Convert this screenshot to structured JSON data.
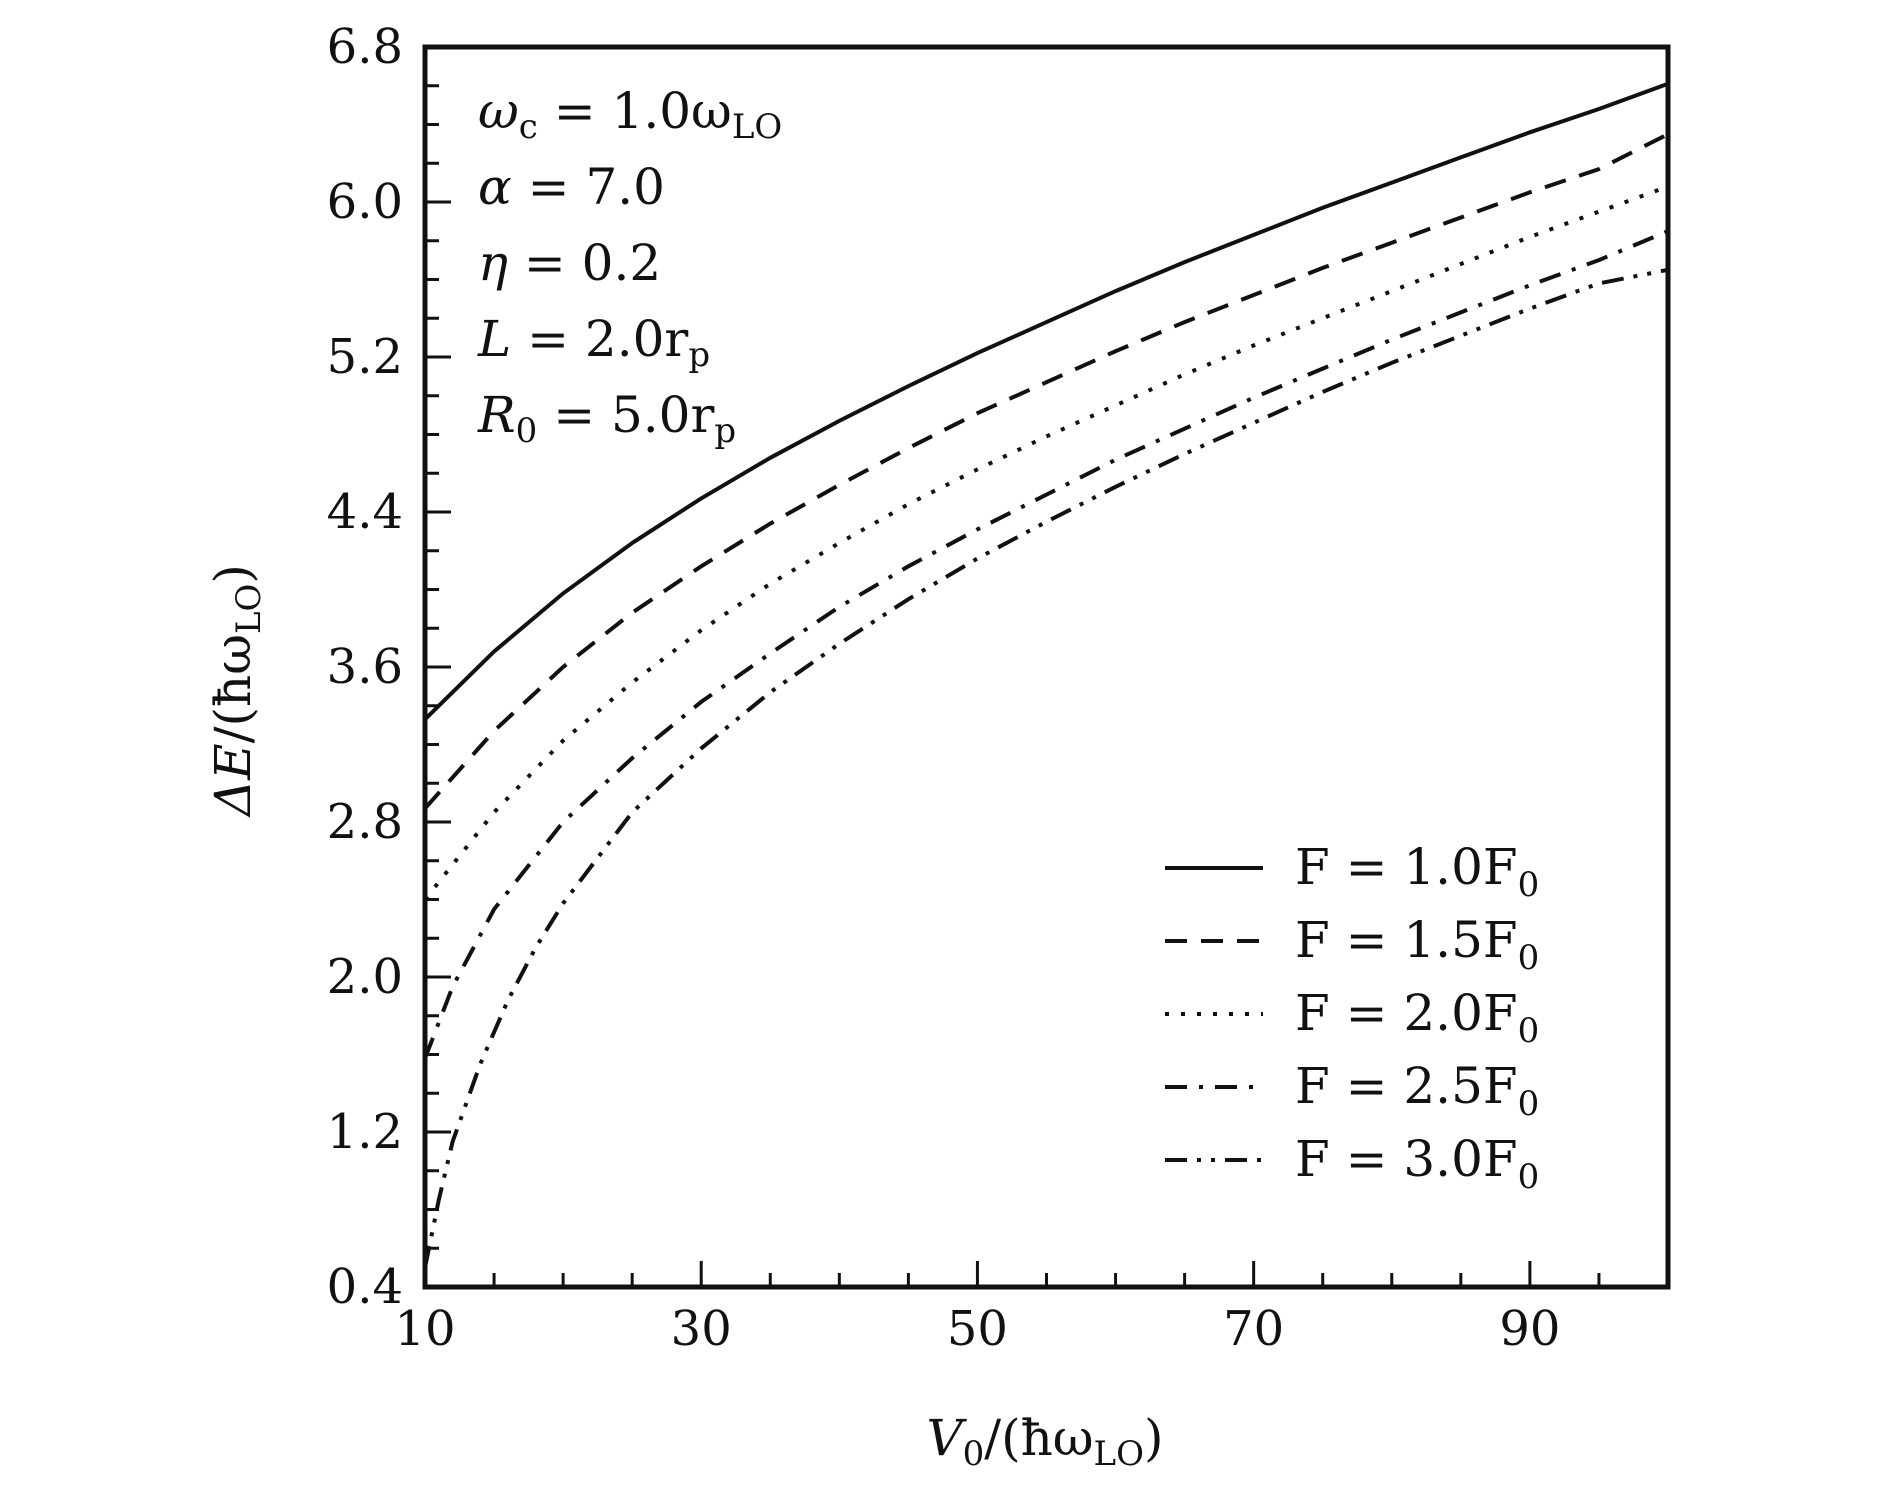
{
  "chart_data": {
    "type": "line",
    "xlabel": {
      "main": "V",
      "sub": "0",
      "rest": "/(ħω",
      "sub2": "LO",
      "close": ")"
    },
    "ylabel": {
      "main": "ΔE",
      "rest": "/(ħω",
      "sub": "LO",
      "close": ")"
    },
    "xlim": [
      10,
      100
    ],
    "ylim": [
      0.4,
      6.8
    ],
    "xticks": [
      10,
      30,
      50,
      70,
      90
    ],
    "xtick_labels": [
      "10",
      "30",
      "50",
      "70",
      "90"
    ],
    "yticks": [
      0.4,
      1.2,
      2.0,
      2.8,
      3.6,
      4.4,
      5.2,
      6.0,
      6.8
    ],
    "ytick_labels": [
      "0.4",
      "1.2",
      "2.0",
      "2.8",
      "3.6",
      "4.4",
      "5.2",
      "6.0",
      "6.8"
    ],
    "annotations": [
      {
        "main": "ω",
        "sub": "c",
        "rest": " = 1.0ω",
        "sub2": "LO"
      },
      {
        "main": "α",
        "sub": "",
        "rest": " = 7.0",
        "sub2": ""
      },
      {
        "main": "η",
        "sub": "",
        "rest": " = 0.2",
        "sub2": ""
      },
      {
        "main": "L",
        "sub": "",
        "rest": " = 2.0r",
        "sub2": "p"
      },
      {
        "main": "R",
        "sub": "0",
        "rest": " = 5.0r",
        "sub2": "p"
      }
    ],
    "legend_position": "bottom-right",
    "series": [
      {
        "name": "F = 1.0F0",
        "label_main": "F = 1.0F",
        "label_sub": "0",
        "dash": "solid",
        "x": [
          10,
          15,
          20,
          25,
          30,
          35,
          40,
          45,
          50,
          55,
          60,
          65,
          70,
          75,
          80,
          85,
          90,
          95,
          100
        ],
        "y": [
          3.33,
          3.68,
          3.98,
          4.24,
          4.47,
          4.68,
          4.87,
          5.05,
          5.22,
          5.38,
          5.54,
          5.69,
          5.83,
          5.97,
          6.1,
          6.23,
          6.36,
          6.48,
          6.61
        ]
      },
      {
        "name": "F = 1.5F0",
        "label_main": "F = 1.5F",
        "label_sub": "0",
        "dash": "dashed",
        "x": [
          10,
          15,
          20,
          25,
          30,
          35,
          40,
          45,
          50,
          55,
          60,
          65,
          70,
          75,
          80,
          85,
          90,
          95,
          100
        ],
        "y": [
          2.87,
          3.27,
          3.6,
          3.88,
          4.12,
          4.34,
          4.54,
          4.73,
          4.91,
          5.07,
          5.23,
          5.38,
          5.52,
          5.66,
          5.79,
          5.92,
          6.05,
          6.17,
          6.35
        ]
      },
      {
        "name": "F = 2.0F0",
        "label_main": "F = 2.0F",
        "label_sub": "0",
        "dash": "dotted",
        "x": [
          10,
          15,
          20,
          25,
          30,
          35,
          40,
          45,
          50,
          55,
          60,
          65,
          70,
          75,
          80,
          85,
          90,
          95,
          100
        ],
        "y": [
          2.4,
          2.85,
          3.22,
          3.52,
          3.79,
          4.03,
          4.24,
          4.44,
          4.62,
          4.79,
          4.95,
          5.11,
          5.26,
          5.4,
          5.54,
          5.68,
          5.82,
          5.95,
          6.08
        ]
      },
      {
        "name": "F = 2.5F0",
        "label_main": "F = 2.5F",
        "label_sub": "0",
        "dash": "dashdot",
        "x": [
          10,
          12,
          15,
          20,
          25,
          30,
          35,
          40,
          45,
          50,
          55,
          60,
          65,
          70,
          75,
          80,
          85,
          90,
          95,
          100
        ],
        "y": [
          1.58,
          1.95,
          2.35,
          2.8,
          3.13,
          3.42,
          3.67,
          3.91,
          4.12,
          4.31,
          4.49,
          4.67,
          4.83,
          4.99,
          5.14,
          5.29,
          5.43,
          5.57,
          5.7,
          5.85
        ]
      },
      {
        "name": "F = 3.0F0",
        "label_main": "F = 3.0F",
        "label_sub": "0",
        "dash": "dashdotdot",
        "x": [
          10,
          11,
          12,
          14,
          16,
          18,
          20,
          25,
          30,
          35,
          40,
          45,
          50,
          55,
          60,
          65,
          70,
          75,
          80,
          85,
          90,
          95,
          100
        ],
        "y": [
          0.5,
          0.85,
          1.15,
          1.55,
          1.88,
          2.15,
          2.38,
          2.85,
          3.18,
          3.47,
          3.72,
          3.95,
          4.16,
          4.35,
          4.53,
          4.7,
          4.86,
          5.02,
          5.17,
          5.31,
          5.45,
          5.58,
          5.65
        ]
      }
    ]
  }
}
